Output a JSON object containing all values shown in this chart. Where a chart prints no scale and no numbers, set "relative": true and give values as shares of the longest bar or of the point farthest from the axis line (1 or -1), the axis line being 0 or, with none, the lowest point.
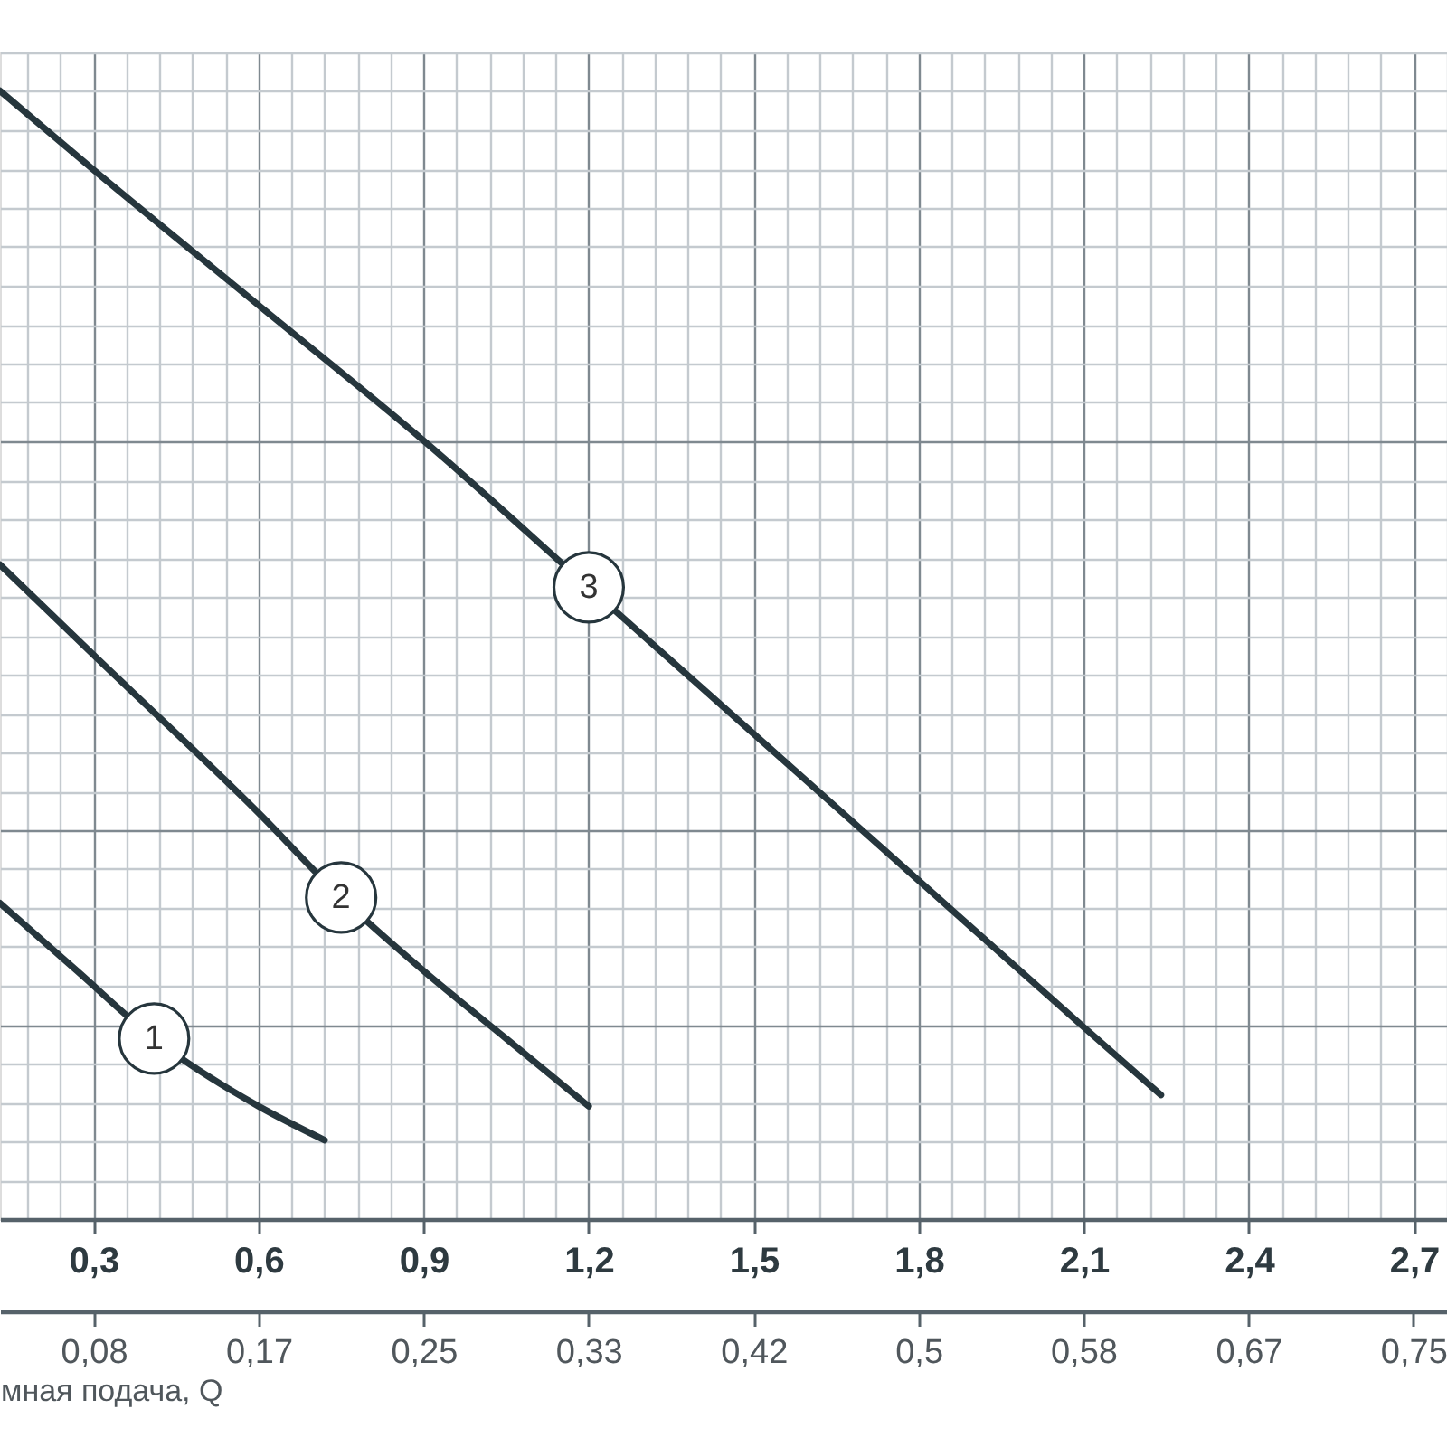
{
  "chart_data": {
    "type": "line",
    "xlabel": "мная подача, Q",
    "relative": true,
    "grid": true,
    "xlim": [
      0.13,
      2.76
    ],
    "xticks": [
      {
        "value": 0.3,
        "label": "0,3"
      },
      {
        "value": 0.6,
        "label": "0,6"
      },
      {
        "value": 0.9,
        "label": "0,9"
      },
      {
        "value": 1.2,
        "label": "1,2"
      },
      {
        "value": 1.5,
        "label": "1,5"
      },
      {
        "value": 1.8,
        "label": "1,8"
      },
      {
        "value": 2.1,
        "label": "2,1"
      },
      {
        "value": 2.4,
        "label": "2,4"
      },
      {
        "value": 2.7,
        "label": "2,7"
      }
    ],
    "x2lim": [
      0.036,
      0.767
    ],
    "x2ticks": [
      {
        "value": 0.0833,
        "label": "0,08"
      },
      {
        "value": 0.1667,
        "label": "0,17"
      },
      {
        "value": 0.25,
        "label": "0,25"
      },
      {
        "value": 0.3333,
        "label": "0,33"
      },
      {
        "value": 0.4167,
        "label": "0,42"
      },
      {
        "value": 0.5,
        "label": "0,5"
      },
      {
        "value": 0.5833,
        "label": "0,58"
      },
      {
        "value": 0.6667,
        "label": "0,67"
      },
      {
        "value": 0.75,
        "label": "0,75"
      }
    ],
    "series": [
      {
        "name": "1",
        "color": "#26363d",
        "x": [
          0.13,
          0.27,
          0.41,
          0.6,
          0.72
        ],
        "values": [
          0.28,
          0.22,
          0.16,
          0.1,
          0.07
        ]
      },
      {
        "name": "2",
        "color": "#26363d",
        "x": [
          0.13,
          0.3,
          0.6,
          0.75,
          0.9,
          1.05,
          1.2
        ],
        "values": [
          0.58,
          0.5,
          0.36,
          0.285,
          0.22,
          0.16,
          0.1
        ]
      },
      {
        "name": "3",
        "color": "#26363d",
        "x": [
          0.13,
          0.3,
          0.6,
          0.9,
          1.2,
          1.5,
          1.8,
          2.1,
          2.24
        ],
        "values": [
          1.0,
          0.93,
          0.81,
          0.69,
          0.56,
          0.43,
          0.3,
          0.17,
          0.11
        ]
      }
    ]
  }
}
